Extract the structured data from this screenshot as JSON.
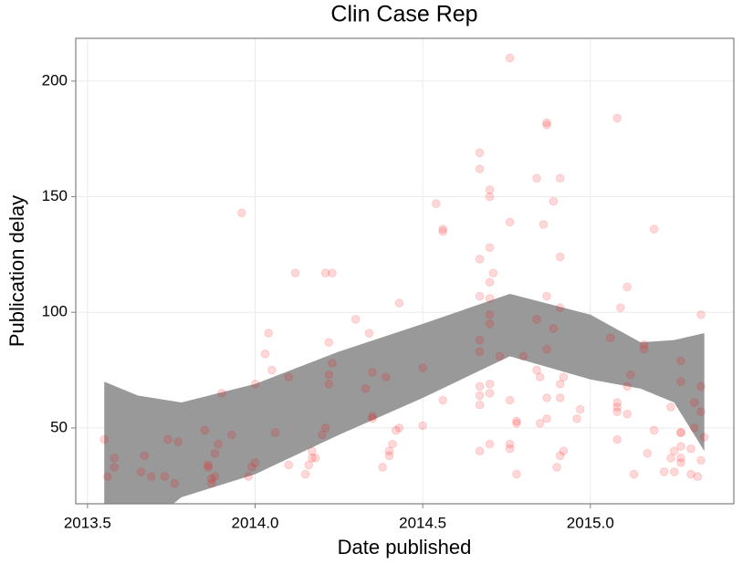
{
  "chart_data": {
    "type": "scatter",
    "title": "Clin Case Rep",
    "x_label": "Date published",
    "y_label": "Publication delay",
    "xlim": [
      2013.465,
      2015.428
    ],
    "ylim": [
      17.2,
      218.5
    ],
    "xticks": [
      2013.5,
      {
        "value": 2014,
        "label": "2014.0"
      },
      2014.5,
      {
        "value": 2015,
        "label": "2015.0"
      }
    ],
    "yticks": [
      50,
      100,
      150,
      200
    ],
    "grid": true,
    "color": "#ff0000",
    "alpha": 0.15,
    "band_color": "#999999",
    "x": [
      2013.55,
      2013.56,
      2013.58,
      2013.58,
      2013.66,
      2013.67,
      2013.69,
      2013.73,
      2013.74,
      2013.76,
      2013.77,
      2013.85,
      2013.86,
      2013.86,
      2013.87,
      2013.87,
      2013.88,
      2013.88,
      2013.89,
      2013.9,
      2013.93,
      2013.96,
      2013.98,
      2013.99,
      2014.0,
      2014.0,
      2014.03,
      2014.04,
      2014.05,
      2014.06,
      2014.1,
      2014.1,
      2014.12,
      2014.15,
      2014.16,
      2014.17,
      2014.17,
      2014.18,
      2014.2,
      2014.21,
      2014.21,
      2014.22,
      2014.22,
      2014.22,
      2014.23,
      2014.23,
      2014.3,
      2014.33,
      2014.34,
      2014.35,
      2014.35,
      2014.35,
      2014.38,
      2014.39,
      2014.4,
      2014.4,
      2014.41,
      2014.42,
      2014.43,
      2014.43,
      2014.5,
      2014.5,
      2014.54,
      2014.56,
      2014.56,
      2014.56,
      2014.67,
      2014.67,
      2014.67,
      2014.67,
      2014.67,
      2014.67,
      2014.67,
      2014.67,
      2014.67,
      2014.67,
      2014.7,
      2014.7,
      2014.7,
      2014.7,
      2014.7,
      2014.7,
      2014.7,
      2014.7,
      2014.7,
      2014.7,
      2014.71,
      2014.73,
      2014.76,
      2014.76,
      2014.76,
      2014.76,
      2014.76,
      2014.78,
      2014.78,
      2014.78,
      2014.8,
      2014.84,
      2014.84,
      2014.84,
      2014.85,
      2014.85,
      2014.86,
      2014.87,
      2014.87,
      2014.87,
      2014.87,
      2014.87,
      2014.87,
      2014.89,
      2014.89,
      2014.9,
      2014.91,
      2014.91,
      2014.91,
      2014.91,
      2014.91,
      2014.91,
      2014.92,
      2014.92,
      2014.96,
      2014.97,
      2015.06,
      2015.08,
      2015.08,
      2015.08,
      2015.08,
      2015.08,
      2015.09,
      2015.11,
      2015.11,
      2015.11,
      2015.12,
      2015.13,
      2015.16,
      2015.16,
      2015.17,
      2015.19,
      2015.19,
      2015.22,
      2015.24,
      2015.24,
      2015.25,
      2015.25,
      2015.27,
      2015.27,
      2015.27,
      2015.27,
      2015.27,
      2015.27,
      2015.27,
      2015.3,
      2015.3,
      2015.31,
      2015.31,
      2015.32,
      2015.33,
      2015.33,
      2015.33,
      2015.33,
      2015.34
    ],
    "values": [
      45,
      29,
      37,
      33,
      31,
      38,
      29,
      29,
      45,
      26,
      44,
      49,
      34,
      33,
      28,
      26,
      39,
      29,
      43,
      65,
      47,
      143,
      29,
      33,
      35,
      69,
      82,
      91,
      75,
      48,
      72,
      34,
      117,
      30,
      34,
      40,
      37,
      37,
      47,
      50,
      117,
      87,
      73,
      69,
      78,
      117,
      97,
      67,
      91,
      74,
      55,
      54,
      33,
      72,
      38,
      40,
      43,
      49,
      50,
      104,
      76,
      51,
      147,
      136,
      135,
      62,
      169,
      162,
      123,
      107,
      88,
      83,
      68,
      64,
      60,
      40,
      153,
      150,
      128,
      113,
      106,
      99,
      95,
      69,
      65,
      43,
      117,
      81,
      210,
      139,
      62,
      43,
      41,
      53,
      52,
      30,
      81,
      158,
      97,
      75,
      72,
      52,
      138,
      182,
      181,
      107,
      84,
      63,
      54,
      148,
      93,
      33,
      158,
      124,
      102,
      69,
      63,
      38,
      40,
      72,
      54,
      58,
      89,
      184,
      61,
      59,
      57,
      45,
      102,
      111,
      68,
      56,
      73,
      30,
      86,
      84,
      39,
      136,
      49,
      31,
      59,
      37,
      40,
      31,
      79,
      70,
      48,
      48,
      42,
      37,
      35,
      30,
      41,
      61,
      50,
      29,
      99,
      68,
      57,
      36,
      46
    ],
    "band": {
      "x": [
        2013.55,
        2013.65,
        2013.78,
        2014.0,
        2014.25,
        2014.5,
        2014.76,
        2015.0,
        2015.15,
        2015.25,
        2015.34
      ],
      "upper": [
        70,
        64,
        61,
        69,
        83,
        95,
        108,
        99,
        87,
        88,
        91
      ],
      "lower": [
        -5,
        5,
        20,
        30,
        47,
        63,
        81,
        71,
        67,
        61,
        40
      ]
    }
  }
}
